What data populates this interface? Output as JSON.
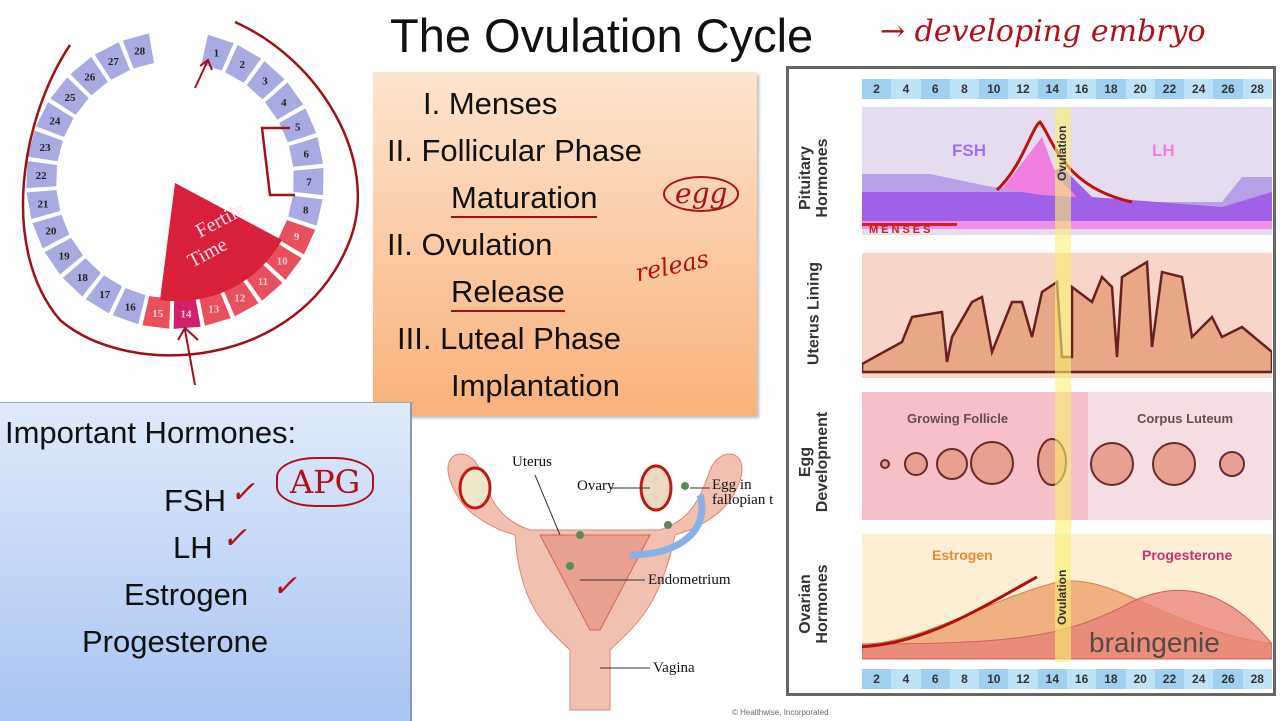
{
  "title": "The Ovulation Cycle",
  "annotations": {
    "title_note": "→ developing embryo",
    "egg": "egg",
    "release": "releas",
    "apg": "APG"
  },
  "cycle_wheel": {
    "days": [
      1,
      2,
      3,
      4,
      5,
      6,
      7,
      8,
      9,
      10,
      11,
      12,
      13,
      14,
      15,
      16,
      17,
      18,
      19,
      20,
      21,
      22,
      23,
      24,
      25,
      26,
      27,
      28
    ],
    "fertile_label_line1": "Fertile",
    "fertile_label_line2": "Time",
    "colors": {
      "normal": "#a7abe2",
      "fertile": "#e8505e",
      "peak": "#d2206c",
      "wedge": "#d8203a"
    }
  },
  "phases": {
    "items": [
      {
        "label": "I.  Menses"
      },
      {
        "label": "II. Follicular Phase"
      },
      {
        "label": "Maturation"
      },
      {
        "label": "II. Ovulation"
      },
      {
        "label": "Release"
      },
      {
        "label": "III. Luteal Phase"
      },
      {
        "label": "Implantation"
      }
    ]
  },
  "hormones": {
    "heading": "Important Hormones:",
    "items": [
      "FSH",
      "LH",
      "Estrogen",
      "Progesterone"
    ]
  },
  "anatomy": {
    "labels": {
      "uterus": "Uterus",
      "ovary": "Ovary",
      "egg": "Egg in fallopian t",
      "endometrium": "Endometrium",
      "vagina": "Vagina",
      "credit": "© Healthwise, Incorporated"
    }
  },
  "cycle_chart": {
    "day_ticks": [
      "2",
      "4",
      "6",
      "8",
      "10",
      "12",
      "14",
      "16",
      "18",
      "20",
      "22",
      "24",
      "26",
      "28"
    ],
    "rows": {
      "pituitary": "Pituitary Hormones",
      "uterus": "Uterus Lining",
      "egg": "Egg Development",
      "ovarian": "Ovarian Hormones"
    },
    "fsh": "FSH",
    "lh": "LH",
    "menses": "MENSES",
    "ovulation": "Ovulation",
    "growing_follicle": "Growing Follicle",
    "corpus_luteum": "Corpus Luteum",
    "estrogen": "Estrogen",
    "progesterone": "Progesterone",
    "watermark": "braingenie"
  }
}
